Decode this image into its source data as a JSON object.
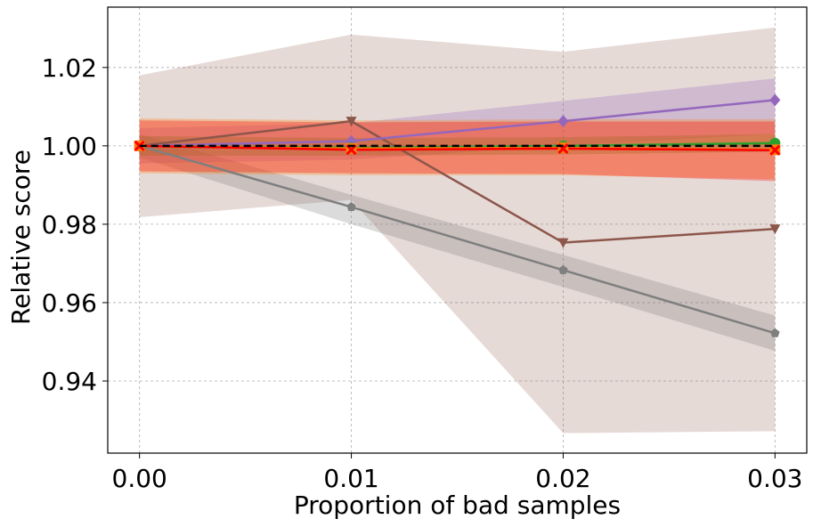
{
  "chart_data": {
    "type": "line",
    "title": "",
    "xlabel": "Proportion of bad samples",
    "ylabel": "Relative score",
    "x": [
      0.0,
      0.01,
      0.02,
      0.03
    ],
    "x_tick_labels": [
      "0.00",
      "0.01",
      "0.02",
      "0.03"
    ],
    "y_ticks": [
      0.94,
      0.96,
      0.98,
      1.0,
      1.02
    ],
    "y_tick_labels": [
      "0.94",
      "0.96",
      "0.98",
      "1.00",
      "1.02"
    ],
    "xlim": [
      -0.0015,
      0.0315
    ],
    "ylim": [
      0.9216,
      1.0354
    ],
    "grid": true,
    "baseline": {
      "y": 1.0,
      "color": "#000000",
      "style": "dashed"
    },
    "series": [
      {
        "name": "series-brown",
        "color": "#8c564b",
        "marker": "triangle-down",
        "values": [
          1.0,
          1.0063,
          0.9753,
          0.9788
        ],
        "lower": [
          0.9818,
          0.9862,
          0.9267,
          0.9272
        ],
        "upper": [
          1.018,
          1.0284,
          1.024,
          1.0302
        ]
      },
      {
        "name": "series-purple",
        "color": "#9467bd",
        "marker": "diamond",
        "values": [
          1.0,
          1.0012,
          1.0063,
          1.0117
        ],
        "lower": [
          0.9955,
          0.9965,
          1.0,
          1.003
        ],
        "upper": [
          1.0045,
          1.0058,
          1.0115,
          1.0172
        ]
      },
      {
        "name": "series-gray",
        "color": "#7f7f7f",
        "marker": "pentagon",
        "values": [
          1.0,
          0.9844,
          0.9683,
          0.9522
        ],
        "lower": [
          0.997,
          0.98,
          0.964,
          0.9477
        ],
        "upper": [
          1.003,
          0.9875,
          0.9722,
          0.9567
        ]
      },
      {
        "name": "series-green",
        "color": "#2ca02c",
        "marker": "circle",
        "values": [
          1.0,
          0.9995,
          1.0,
          1.0007
        ],
        "lower": [
          0.9975,
          0.9975,
          0.9978,
          0.9985
        ],
        "upper": [
          1.0025,
          1.002,
          1.0022,
          1.003
        ]
      },
      {
        "name": "series-orange",
        "color": "#ff7f0e",
        "marker": "square",
        "values": [
          1.0,
          0.9993,
          0.9995,
          0.999
        ],
        "lower": [
          0.993,
          0.9925,
          0.9925,
          0.9915
        ],
        "upper": [
          1.007,
          1.0065,
          1.0068,
          1.0068
        ]
      },
      {
        "name": "series-red",
        "color": "#ff0000",
        "marker": "x",
        "values": [
          1.0,
          0.999,
          0.9993,
          0.9989
        ],
        "lower": [
          0.9935,
          0.993,
          0.9928,
          0.991
        ],
        "upper": [
          1.0065,
          1.006,
          1.0062,
          1.0062
        ]
      }
    ]
  }
}
